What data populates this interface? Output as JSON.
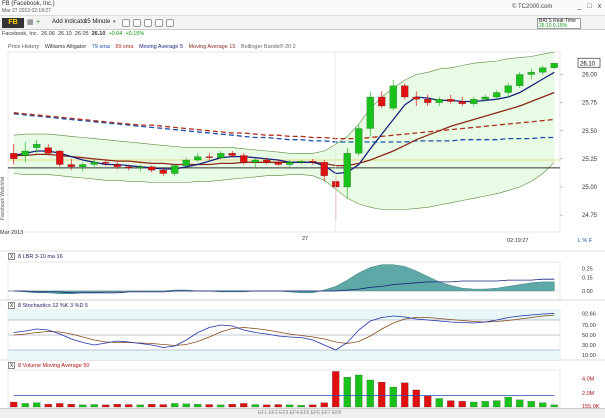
{
  "window": {
    "title": "FB (Facebook, Inc.)",
    "date": "Mar 27 2013 02:19:27",
    "brand": "© TC2000.com",
    "min": "_",
    "max": "□",
    "close": "x"
  },
  "toolbar": {
    "tab_label": "DefaultChart",
    "symbol": "FB",
    "add_indicator": "Add Indicator",
    "interval": "15 Minute",
    "realtime_label": "BATS Real-Time",
    "realtime_value": "26.10",
    "realtime_change": "+0.04",
    "realtime_pct": "0.15%"
  },
  "quote": {
    "name": "Facebook, Inc.",
    "open": "26.06",
    "high": "26.10",
    "low": "26.05",
    "last": "26.10",
    "change": "+0.04",
    "pct": "+0.15%"
  },
  "side_text": "Facebook Watchlist",
  "price_legend": {
    "price_history": "Price History",
    "alligator": "Williams Alligator",
    "sma79": "79 sma",
    "xma89": "89 xma",
    "ma5": "Moving Average 5",
    "ma15": "Moving Average 15",
    "bb": "Bollinger Bands® 20 2"
  },
  "price_axis": {
    "ticks": [
      "26.00",
      "25.75",
      "25.50",
      "25.25",
      "25.00",
      "24.75"
    ],
    "last_label": "26.10",
    "range": [
      24.6,
      26.2
    ]
  },
  "time_axis": {
    "left_label": "Mar 2013",
    "mid_label": "27",
    "right_label": "02:19:27",
    "corner": "L % F"
  },
  "lbr_panel": {
    "header": "8  LBR 3-10   ma 16",
    "x": "X",
    "ticks": [
      "0.25",
      "0.15",
      "0.00"
    ]
  },
  "stoch_panel": {
    "header": "8  Stochastics 12 %K 3  %D 5",
    "x": "X",
    "ticks": [
      "92.66",
      "70.00",
      "50.00",
      "30.00",
      "10.00"
    ]
  },
  "vol_panel": {
    "header": "8  Volume   Moving Average 50",
    "x": "X",
    "ticks": [
      "4.0M",
      "2.0M",
      "155.0K"
    ]
  },
  "status": {
    "text": "EF1 EF2 EF3 EF4 EF5 EF6 EF7 EF8"
  },
  "colors": {
    "up": "#19c21b",
    "down": "#e01010",
    "ma5": "#1a237e",
    "ma15": "#8b2a1a",
    "sma79": "#1c4fb0",
    "xma89": "#b02e1c",
    "bb_fill": "#e8fbe4",
    "bb_line": "#5a8a3a",
    "lbr_fill": "#5fa8a8"
  },
  "chart_data": [
    {
      "type": "candlestick",
      "title": "FB 15 Minute",
      "ylim": [
        24.6,
        26.2
      ],
      "ohlc": [
        [
          25.3,
          25.38,
          25.2,
          25.25
        ],
        [
          25.28,
          25.4,
          25.22,
          25.32
        ],
        [
          25.35,
          25.42,
          25.3,
          25.38
        ],
        [
          25.35,
          25.38,
          25.28,
          25.3
        ],
        [
          25.32,
          25.33,
          25.18,
          25.2
        ],
        [
          25.2,
          25.25,
          25.15,
          25.18
        ],
        [
          25.18,
          25.22,
          25.14,
          25.2
        ],
        [
          25.2,
          25.24,
          25.18,
          25.22
        ],
        [
          25.22,
          25.25,
          25.19,
          25.21
        ],
        [
          25.2,
          25.22,
          25.16,
          25.18
        ],
        [
          25.18,
          25.2,
          25.15,
          25.17
        ],
        [
          25.17,
          25.2,
          25.14,
          25.18
        ],
        [
          25.18,
          25.19,
          25.13,
          25.15
        ],
        [
          25.15,
          25.17,
          25.1,
          25.12
        ],
        [
          25.12,
          25.2,
          25.1,
          25.19
        ],
        [
          25.19,
          25.26,
          25.18,
          25.24
        ],
        [
          25.24,
          25.3,
          25.22,
          25.27
        ],
        [
          25.27,
          25.3,
          25.24,
          25.26
        ],
        [
          25.26,
          25.32,
          25.25,
          25.3
        ],
        [
          25.3,
          25.32,
          25.26,
          25.28
        ],
        [
          25.28,
          25.3,
          25.2,
          25.22
        ],
        [
          25.22,
          25.26,
          25.18,
          25.24
        ],
        [
          25.24,
          25.26,
          25.2,
          25.22
        ],
        [
          25.22,
          25.24,
          25.19,
          25.2
        ],
        [
          25.2,
          25.24,
          25.18,
          25.22
        ],
        [
          25.22,
          25.24,
          25.2,
          25.23
        ],
        [
          25.23,
          25.25,
          25.2,
          25.22
        ],
        [
          25.22,
          25.24,
          25.05,
          25.1
        ],
        [
          25.05,
          25.1,
          24.7,
          25.0
        ],
        [
          25.0,
          25.35,
          24.9,
          25.3
        ],
        [
          25.3,
          25.55,
          25.28,
          25.52
        ],
        [
          25.52,
          25.85,
          25.45,
          25.8
        ],
        [
          25.8,
          25.85,
          25.7,
          25.72
        ],
        [
          25.7,
          25.95,
          25.68,
          25.9
        ],
        [
          25.9,
          25.92,
          25.78,
          25.8
        ],
        [
          25.8,
          25.85,
          25.72,
          25.78
        ],
        [
          25.78,
          25.82,
          25.72,
          25.75
        ],
        [
          25.75,
          25.8,
          25.72,
          25.78
        ],
        [
          25.78,
          25.82,
          25.74,
          25.76
        ],
        [
          25.76,
          25.8,
          25.72,
          25.74
        ],
        [
          25.74,
          25.8,
          25.72,
          25.78
        ],
        [
          25.78,
          25.82,
          25.76,
          25.8
        ],
        [
          25.8,
          25.86,
          25.78,
          25.84
        ],
        [
          25.84,
          25.92,
          25.8,
          25.9
        ],
        [
          25.9,
          26.02,
          25.88,
          26.0
        ],
        [
          26.0,
          26.05,
          25.96,
          26.02
        ],
        [
          26.02,
          26.08,
          26.0,
          26.06
        ],
        [
          26.06,
          26.1,
          26.05,
          26.1
        ]
      ],
      "ma5": [
        25.28,
        25.3,
        25.32,
        25.32,
        25.3,
        25.27,
        25.24,
        25.22,
        25.2,
        25.2,
        25.19,
        25.18,
        25.17,
        25.16,
        25.16,
        25.18,
        25.2,
        25.23,
        25.26,
        25.27,
        25.27,
        25.26,
        25.25,
        25.24,
        25.22,
        25.22,
        25.22,
        25.19,
        25.12,
        25.13,
        25.2,
        25.34,
        25.47,
        25.6,
        25.73,
        25.8,
        25.79,
        25.77,
        25.77,
        25.76,
        25.76,
        25.77,
        25.78,
        25.8,
        25.84,
        25.9,
        25.96,
        26.02
      ],
      "ma15": [
        25.28,
        25.28,
        25.29,
        25.29,
        25.28,
        25.27,
        25.26,
        25.25,
        25.24,
        25.23,
        25.23,
        25.22,
        25.21,
        25.21,
        25.2,
        25.2,
        25.2,
        25.2,
        25.21,
        25.21,
        25.22,
        25.22,
        25.22,
        25.22,
        25.22,
        25.22,
        25.22,
        25.21,
        25.19,
        25.19,
        25.21,
        25.24,
        25.28,
        25.32,
        25.37,
        25.42,
        25.46,
        25.5,
        25.54,
        25.57,
        25.6,
        25.63,
        25.66,
        25.69,
        25.72,
        25.76,
        25.8,
        25.84
      ],
      "sma79": [
        25.65,
        25.64,
        25.63,
        25.62,
        25.61,
        25.6,
        25.59,
        25.58,
        25.57,
        25.56,
        25.55,
        25.54,
        25.53,
        25.52,
        25.51,
        25.5,
        25.49,
        25.48,
        25.47,
        25.46,
        25.45,
        25.44,
        25.44,
        25.43,
        25.42,
        25.42,
        25.41,
        25.41,
        25.4,
        25.4,
        25.4,
        25.4,
        25.4,
        25.4,
        25.4,
        25.41,
        25.41,
        25.41,
        25.41,
        25.42,
        25.42,
        25.42,
        25.42,
        25.43,
        25.43,
        25.43,
        25.44,
        25.44
      ],
      "xma89": [
        25.66,
        25.65,
        25.64,
        25.63,
        25.62,
        25.61,
        25.6,
        25.59,
        25.58,
        25.57,
        25.56,
        25.55,
        25.55,
        25.54,
        25.53,
        25.52,
        25.51,
        25.5,
        25.49,
        25.48,
        25.48,
        25.47,
        25.46,
        25.46,
        25.45,
        25.45,
        25.44,
        25.44,
        25.43,
        25.43,
        25.43,
        25.44,
        25.45,
        25.46,
        25.47,
        25.48,
        25.49,
        25.5,
        25.51,
        25.52,
        25.53,
        25.54,
        25.55,
        25.56,
        25.57,
        25.58,
        25.59,
        25.6
      ],
      "bb_upper": [
        25.46,
        25.47,
        25.47,
        25.47,
        25.46,
        25.45,
        25.44,
        25.43,
        25.42,
        25.41,
        25.4,
        25.39,
        25.38,
        25.37,
        25.36,
        25.35,
        25.35,
        25.35,
        25.35,
        25.35,
        25.34,
        25.33,
        25.32,
        25.31,
        25.3,
        25.3,
        25.3,
        25.32,
        25.38,
        25.45,
        25.56,
        25.7,
        25.8,
        25.88,
        25.95,
        26.0,
        26.02,
        26.05,
        26.06,
        26.08,
        26.1,
        26.11,
        26.12,
        26.14,
        26.15,
        26.16,
        26.18,
        26.2
      ],
      "bb_lower": [
        25.12,
        25.11,
        25.11,
        25.11,
        25.1,
        25.09,
        25.08,
        25.07,
        25.06,
        25.06,
        25.05,
        25.05,
        25.04,
        25.04,
        25.04,
        25.04,
        25.05,
        25.05,
        25.06,
        25.07,
        25.08,
        25.09,
        25.1,
        25.1,
        25.11,
        25.11,
        25.1,
        25.06,
        24.98,
        24.9,
        24.85,
        24.82,
        24.8,
        24.8,
        24.8,
        24.81,
        24.82,
        24.84,
        24.86,
        24.88,
        24.9,
        24.92,
        24.94,
        24.97,
        25.0,
        25.05,
        25.12,
        25.22
      ],
      "alligator_jaw": 25.17,
      "alligator_teeth": 25.24
    },
    {
      "type": "area",
      "title": "LBR 3-10",
      "ylim": [
        -0.1,
        0.32
      ],
      "values": [
        0.0,
        -0.01,
        -0.02,
        -0.02,
        -0.03,
        -0.03,
        -0.02,
        -0.02,
        -0.01,
        -0.01,
        0.0,
        0.0,
        0.0,
        0.0,
        0.01,
        0.01,
        0.0,
        0.0,
        -0.01,
        -0.01,
        -0.01,
        0.0,
        0.0,
        0.0,
        -0.01,
        -0.02,
        -0.02,
        0.01,
        0.05,
        0.12,
        0.2,
        0.26,
        0.29,
        0.29,
        0.27,
        0.22,
        0.16,
        0.1,
        0.06,
        0.03,
        0.02,
        0.02,
        0.03,
        0.05,
        0.07,
        0.09,
        0.1,
        0.1
      ],
      "ma16": [
        0.0,
        0.0,
        -0.01,
        -0.01,
        -0.01,
        -0.02,
        -0.02,
        -0.02,
        -0.02,
        -0.02,
        -0.01,
        -0.01,
        -0.01,
        -0.01,
        0.0,
        0.0,
        0.0,
        0.0,
        0.0,
        0.0,
        0.0,
        0.0,
        0.0,
        0.0,
        0.0,
        0.0,
        0.0,
        0.0,
        0.0,
        0.01,
        0.02,
        0.04,
        0.05,
        0.07,
        0.08,
        0.09,
        0.1,
        0.1,
        0.1,
        0.11,
        0.11,
        0.11,
        0.11,
        0.12,
        0.12,
        0.12,
        0.13,
        0.13
      ]
    },
    {
      "type": "line",
      "title": "Stochastics 12 %K 3 %D 5",
      "ylim": [
        0,
        100
      ],
      "k": [
        55,
        58,
        62,
        60,
        52,
        42,
        35,
        30,
        34,
        38,
        36,
        33,
        30,
        25,
        28,
        40,
        55,
        65,
        70,
        68,
        60,
        55,
        52,
        48,
        46,
        45,
        40,
        30,
        20,
        35,
        60,
        78,
        85,
        88,
        86,
        82,
        80,
        78,
        76,
        75,
        74,
        76,
        80,
        85,
        88,
        90,
        92,
        93
      ],
      "d": [
        50,
        52,
        55,
        57,
        56,
        52,
        46,
        40,
        36,
        35,
        35,
        34,
        33,
        31,
        29,
        31,
        37,
        46,
        56,
        63,
        65,
        63,
        60,
        56,
        52,
        49,
        46,
        42,
        36,
        33,
        37,
        48,
        62,
        74,
        82,
        85,
        85,
        83,
        81,
        79,
        77,
        76,
        77,
        79,
        82,
        85,
        88,
        90
      ],
      "levels": [
        80,
        50,
        20
      ]
    },
    {
      "type": "bar",
      "title": "Volume",
      "ylim": [
        0,
        5200000
      ],
      "values": [
        700000,
        500000,
        600000,
        400000,
        500000,
        400000,
        300000,
        350000,
        300000,
        400000,
        350000,
        300000,
        400000,
        350000,
        500000,
        450000,
        400000,
        350000,
        300000,
        400000,
        500000,
        350000,
        300000,
        350000,
        300000,
        250000,
        300000,
        600000,
        5000000,
        4200000,
        4500000,
        3800000,
        3500000,
        2800000,
        3400000,
        2400000,
        1600000,
        1200000,
        900000,
        800000,
        700000,
        800000,
        900000,
        1400000,
        1000000,
        800000,
        600000,
        300000
      ],
      "ma50": [
        1600000,
        1600000,
        1600000,
        1600000,
        1600000,
        1600000,
        1600000,
        1600000,
        1600000,
        1600000,
        1600000,
        1600000,
        1600000,
        1600000,
        1600000,
        1600000,
        1600000,
        1600000,
        1600000,
        1600000,
        1600000,
        1600000,
        1600000,
        1600000,
        1600000,
        1600000,
        1600000,
        1600000,
        1600000,
        1600000,
        1600000,
        1600000,
        1600000,
        1600000,
        1600000,
        1600000,
        1600000,
        1600000,
        1600000,
        1600000,
        1600000,
        1600000,
        1600000,
        1600000,
        1600000,
        1600000,
        1600000,
        1600000
      ]
    }
  ]
}
